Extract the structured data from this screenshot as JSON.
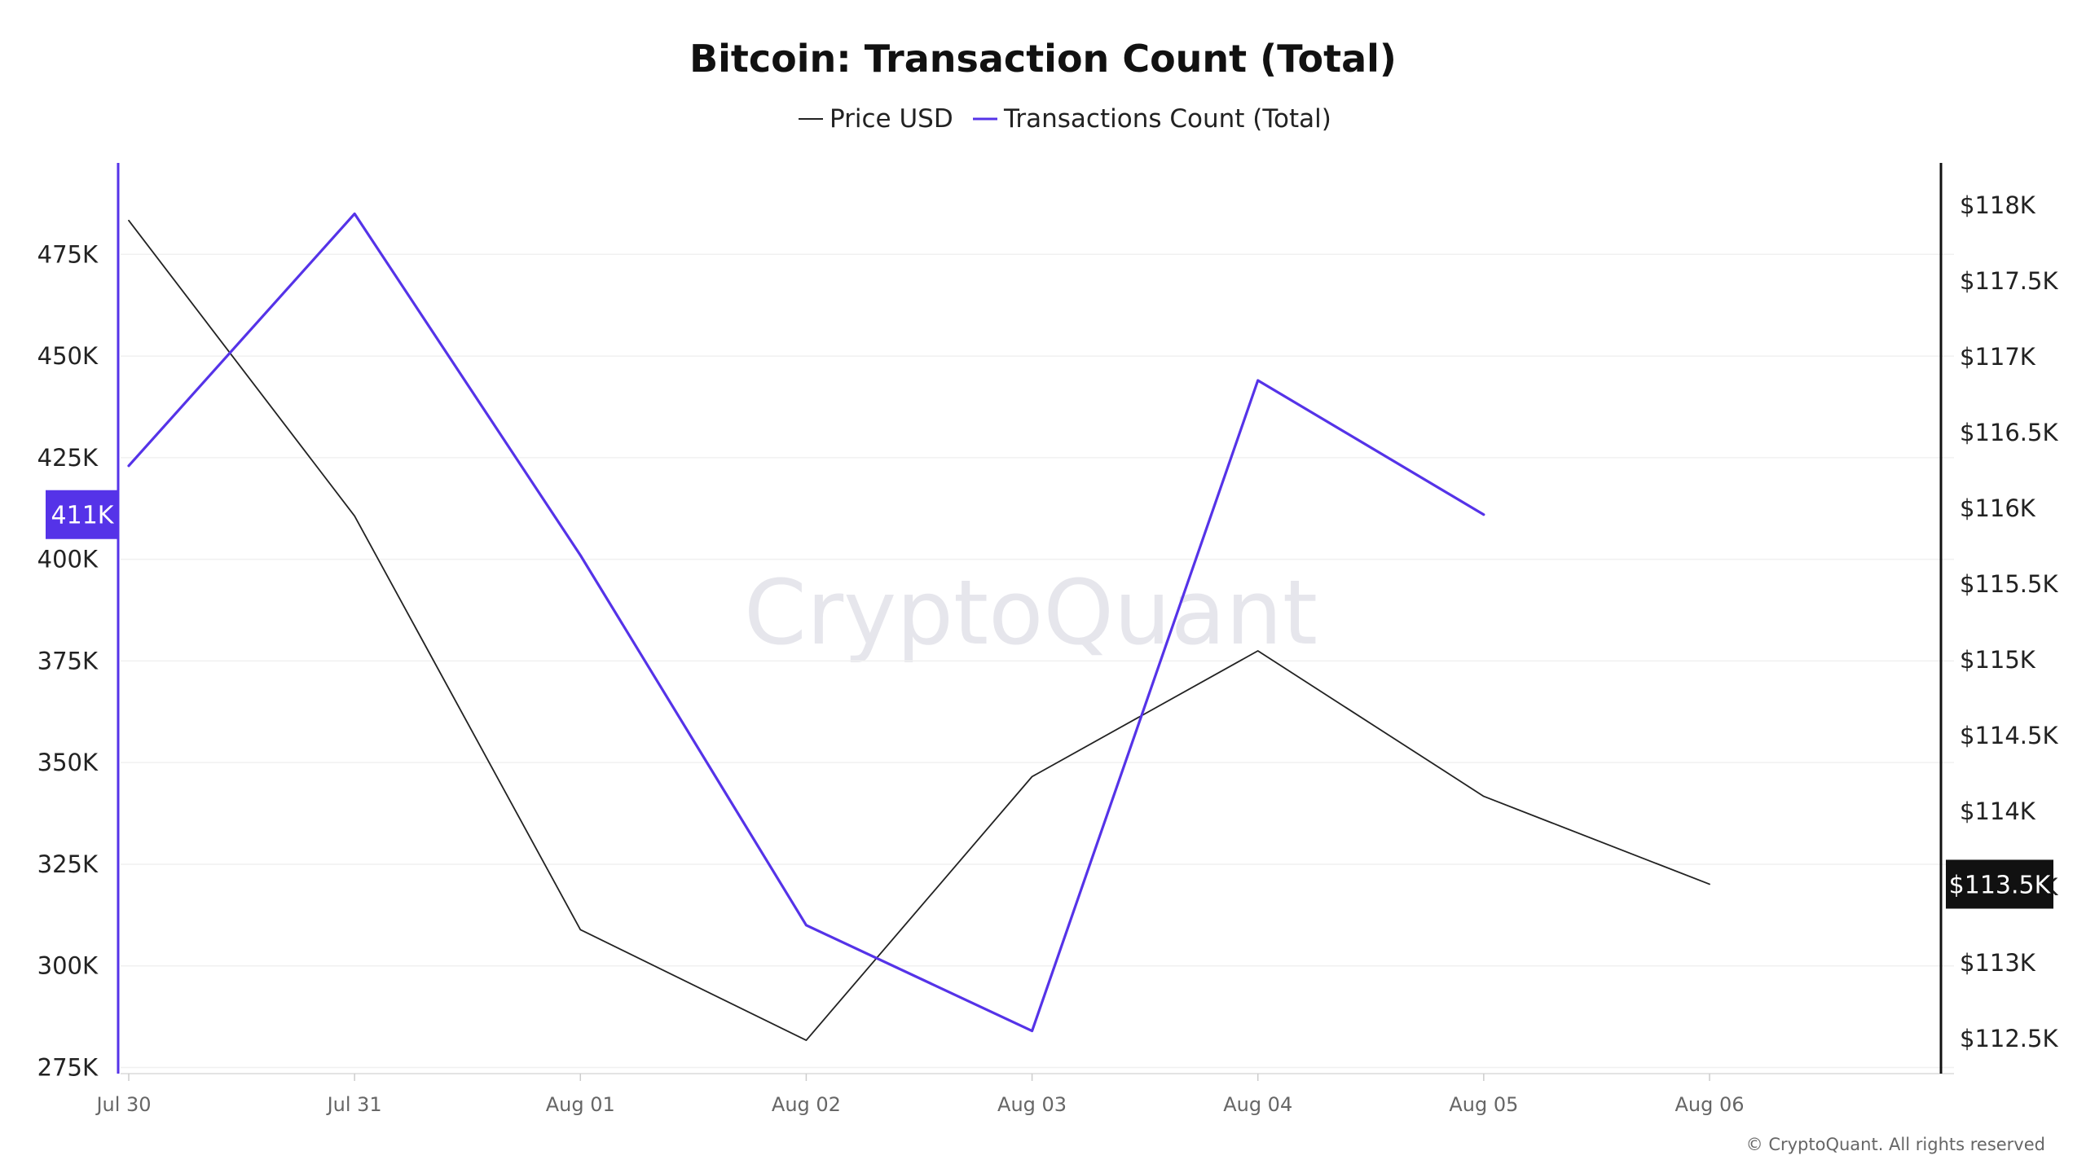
{
  "watermark": "CryptoQuant",
  "footer": "© CryptoQuant. All rights reserved",
  "colors": {
    "price": "#222222",
    "transactions": "#5533e8",
    "grid": "#f0f0f0",
    "axis_left": "#5533e8",
    "axis_right": "#111111"
  },
  "chart_data": {
    "type": "line",
    "title": "Bitcoin: Transaction Count (Total)",
    "legend_position": "top-center",
    "grid": true,
    "categories": [
      "Jul 30",
      "Jul 31",
      "Aug 01",
      "Aug 02",
      "Aug 03",
      "Aug 04",
      "Aug 05",
      "Aug 06"
    ],
    "series": [
      {
        "name": "Price USD",
        "axis": "right",
        "color": "#222222",
        "values": [
          117900,
          115950,
          113220,
          112490,
          114230,
          115060,
          114100,
          113520
        ]
      },
      {
        "name": "Transactions Count (Total)",
        "axis": "left",
        "color": "#5533e8",
        "values": [
          423000,
          485000,
          401000,
          310000,
          284000,
          444000,
          411000,
          null
        ]
      }
    ],
    "y_left": {
      "ticks": [
        275000,
        300000,
        325000,
        350000,
        375000,
        400000,
        425000,
        450000,
        475000
      ],
      "tick_labels": [
        "275K",
        "300K",
        "325K",
        "350K",
        "375K",
        "400K",
        "425K",
        "450K",
        "475K"
      ],
      "range": [
        273500,
        497500
      ]
    },
    "y_right": {
      "ticks": [
        112500,
        113000,
        113500,
        114000,
        114500,
        115000,
        115500,
        116000,
        116500,
        117000,
        117500,
        118000
      ],
      "tick_labels": [
        "$112.5K",
        "$113K",
        "$113.5K",
        "$114K",
        "$114.5K",
        "$115K",
        "$115.5K",
        "$116K",
        "$116.5K",
        "$117K",
        "$117.5K",
        "$118K"
      ],
      "range": [
        112270,
        118280
      ]
    },
    "current_value_left": "411K",
    "current_value_right": "$113.5K"
  }
}
